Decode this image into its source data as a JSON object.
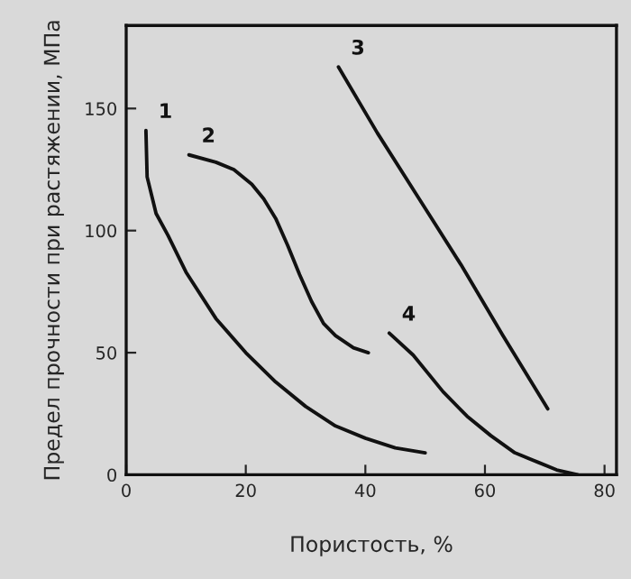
{
  "chart_data": {
    "type": "line",
    "xlabel": "Пористость, %",
    "ylabel": "Предел прочности при растяжении, МПа",
    "xlim": [
      0,
      82
    ],
    "ylim": [
      0,
      184
    ],
    "xticks": [
      0,
      20,
      40,
      60,
      80
    ],
    "yticks": [
      0,
      50,
      100,
      150
    ],
    "grid": false,
    "legend": false,
    "marker": "none",
    "line_style": "solid",
    "series": [
      {
        "name": "1",
        "color": "#111111",
        "x": [
          3.3,
          3.5,
          5,
          7,
          10,
          15,
          20,
          25,
          30,
          35,
          40,
          45,
          50
        ],
        "values": [
          141,
          122,
          107,
          98,
          83,
          64,
          50,
          38,
          28,
          20,
          15,
          11,
          9
        ]
      },
      {
        "name": "2",
        "color": "#111111",
        "x": [
          10.5,
          15,
          18,
          21,
          23,
          25,
          27,
          29,
          31,
          33,
          35,
          38,
          40.5
        ],
        "values": [
          131,
          128,
          125,
          119,
          113,
          105,
          94,
          82,
          71,
          62,
          57,
          52,
          50
        ]
      },
      {
        "name": "3",
        "color": "#111111",
        "x": [
          35.5,
          42,
          49,
          56,
          63,
          70.5
        ],
        "values": [
          167,
          140,
          113,
          86,
          57,
          27
        ]
      },
      {
        "name": "4",
        "color": "#111111",
        "x": [
          44,
          48,
          53,
          57,
          61,
          65,
          69,
          72,
          75.5
        ],
        "values": [
          58,
          49,
          34,
          24,
          16,
          9,
          5,
          2,
          0
        ]
      }
    ]
  }
}
